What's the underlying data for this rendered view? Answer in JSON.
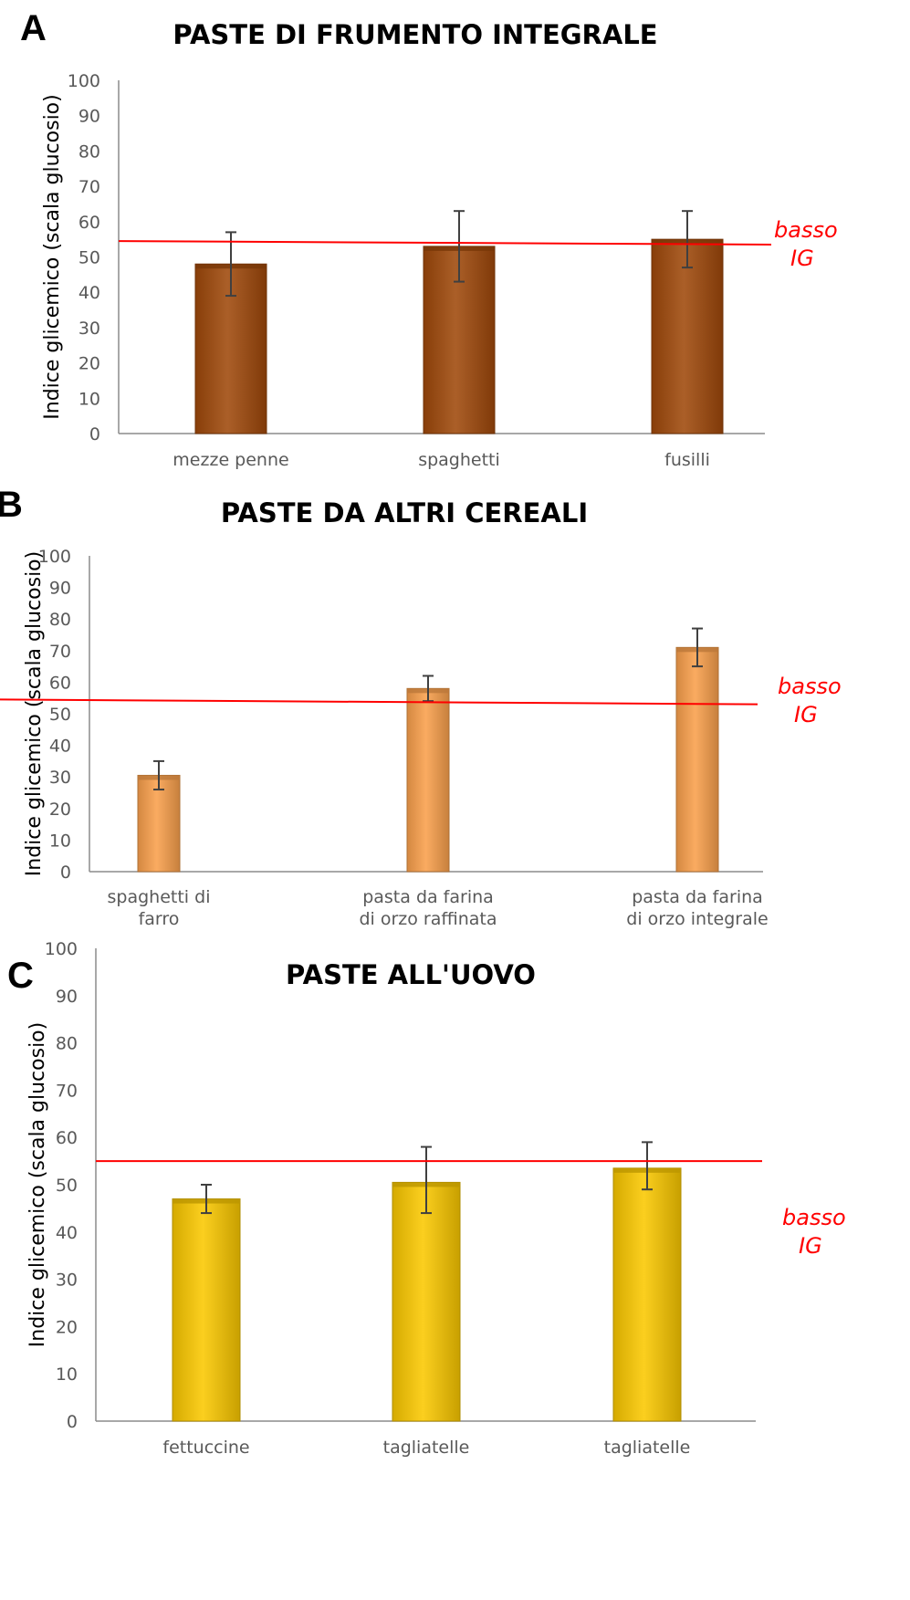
{
  "chart_data": [
    {
      "panel": "A",
      "type": "bar",
      "title": "PASTE DI FRUMENTO INTEGRALE",
      "ylabel": "Indice glicemico (scala glucosio)",
      "xlabel": "",
      "ylim": [
        0,
        100
      ],
      "yticks": [
        "0",
        "10",
        "20",
        "30",
        "40",
        "50",
        "60",
        "70",
        "80",
        "90",
        "100"
      ],
      "categories": [
        [
          "mezze penne"
        ],
        [
          "spaghetti"
        ],
        [
          "fusilli"
        ]
      ],
      "values": [
        48,
        53,
        55
      ],
      "error_low": [
        39,
        43,
        47
      ],
      "error_high": [
        57,
        63,
        63
      ],
      "bar_color": "#a0490b",
      "reference_line": {
        "label": [
          "basso",
          "IG"
        ],
        "y_start": 54.5,
        "y_end": 53.5,
        "color": "#ff0000"
      },
      "grid": false,
      "legend": "none"
    },
    {
      "panel": "B",
      "type": "bar",
      "title": "PASTE DA ALTRI CEREALI",
      "ylabel": "Indice glicemico (scala glucosio)",
      "xlabel": "",
      "ylim": [
        0,
        100
      ],
      "yticks": [
        "0",
        "10",
        "20",
        "30",
        "40",
        "50",
        "60",
        "70",
        "80",
        "90",
        "100"
      ],
      "categories": [
        [
          "spaghetti di",
          "farro"
        ],
        [
          "pasta da farina",
          "di orzo raffinata"
        ],
        [
          "pasta da farina",
          "di orzo integrale"
        ]
      ],
      "values": [
        30.5,
        58,
        71
      ],
      "error_low": [
        26,
        54,
        65
      ],
      "error_high": [
        35,
        62,
        77
      ],
      "bar_color": "#f9a04c",
      "reference_line": {
        "label": [
          "basso",
          "IG"
        ],
        "y_start": 54.5,
        "y_end": 53,
        "color": "#ff0000"
      },
      "grid": false,
      "legend": "none"
    },
    {
      "panel": "C",
      "type": "bar",
      "title": "PASTE ALL'UOVO",
      "ylabel": "Indice glicemico (scala glucosio)",
      "xlabel": "",
      "ylim": [
        0,
        100
      ],
      "yticks": [
        "0",
        "10",
        "20",
        "30",
        "40",
        "50",
        "60",
        "70",
        "80",
        "90",
        "100"
      ],
      "categories": [
        [
          "fettuccine"
        ],
        [
          "tagliatelle"
        ],
        [
          "tagliatelle"
        ]
      ],
      "values": [
        47,
        50.5,
        53.5
      ],
      "error_low": [
        44,
        44,
        49
      ],
      "error_high": [
        50,
        58,
        59
      ],
      "bar_color": "#fac800",
      "reference_line": {
        "label": [
          "basso",
          "IG"
        ],
        "y_start": 55,
        "y_end": 55,
        "color": "#ff0000"
      },
      "grid": false,
      "legend": "none"
    }
  ]
}
